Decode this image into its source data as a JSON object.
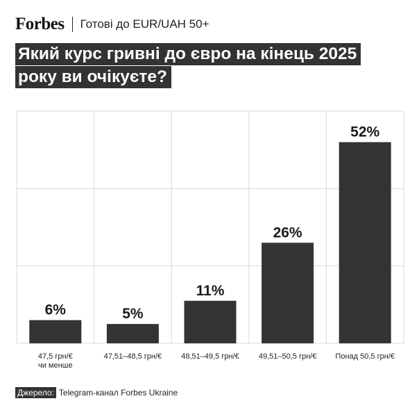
{
  "header": {
    "brand": "Forbes",
    "subtitle": "Готові до EUR/UAH 50+"
  },
  "title_lines": [
    "Який курс гривні до євро на кінець 2025",
    "року ви очікуєте?"
  ],
  "source": {
    "label": "Джерело:",
    "text": "Telegram-канал Forbes Ukraine"
  },
  "chart_data": {
    "type": "bar",
    "categories": [
      [
        "47,5 грн/€",
        "чи менше"
      ],
      [
        "47,51–48,5 грн/€"
      ],
      [
        "48,51–49,5 грн/€"
      ],
      [
        "49,51–50,5 грн/€"
      ],
      [
        "Понад 50,5 грн/€"
      ]
    ],
    "values": [
      6,
      5,
      11,
      26,
      52
    ],
    "value_labels": [
      "6%",
      "5%",
      "11%",
      "26%",
      "52%"
    ],
    "ylim": [
      0,
      60
    ],
    "grid": true,
    "bar_color": "#333333"
  }
}
